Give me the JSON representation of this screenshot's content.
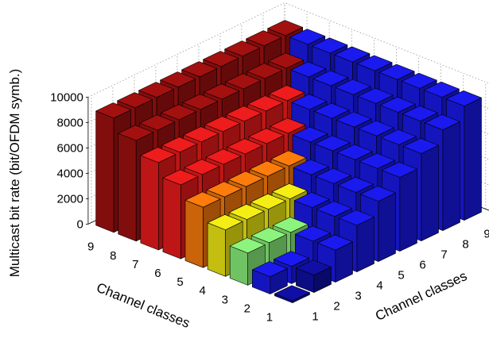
{
  "chart_data": {
    "type": "bar3d",
    "ylabel": "Multicast bit rate (bit/OFDM symb.)",
    "xlabel_left": "Channel classes",
    "xlabel_right": "Channel classes",
    "z_ticks": [
      "0",
      "2000",
      "4000",
      "6000",
      "8000",
      "10000"
    ],
    "zlim": [
      0,
      10000
    ],
    "left_axis_ticks": [
      "1",
      "2",
      "3",
      "4",
      "5",
      "6",
      "7",
      "8",
      "9"
    ],
    "right_axis_ticks": [
      "1",
      "2",
      "3",
      "4",
      "5",
      "6",
      "7",
      "8",
      "9"
    ],
    "grid": true,
    "colors": {
      "dark_red": "#a31010",
      "red": "#ee1c1c",
      "orange": "#fd7c0b",
      "yellow": "#f4ee14",
      "light_green": "#8cf47c",
      "blue": "#1a1aee",
      "dark_blue": "#0f0fa6"
    },
    "values": [
      [
        160,
        1360,
        2530,
        3670,
        4750,
        5820,
        6880,
        7930,
        9000
      ],
      [
        1360,
        1360,
        2530,
        3670,
        4750,
        5820,
        6880,
        7930,
        9000
      ],
      [
        2530,
        2530,
        2530,
        3670,
        4750,
        5820,
        6880,
        7930,
        9000
      ],
      [
        3670,
        3670,
        3670,
        3670,
        4750,
        5820,
        6880,
        7930,
        9000
      ],
      [
        4750,
        4750,
        4750,
        4750,
        4750,
        5820,
        6880,
        7930,
        9000
      ],
      [
        5820,
        5820,
        5820,
        5820,
        5820,
        5820,
        6880,
        7930,
        9000
      ],
      [
        6880,
        6880,
        6880,
        6880,
        6880,
        6880,
        6880,
        7930,
        9000
      ],
      [
        7930,
        7930,
        7930,
        7930,
        7930,
        7930,
        7930,
        7930,
        9000
      ],
      [
        9000,
        9000,
        9000,
        9000,
        9000,
        9000,
        9000,
        9000,
        9000
      ]
    ]
  }
}
